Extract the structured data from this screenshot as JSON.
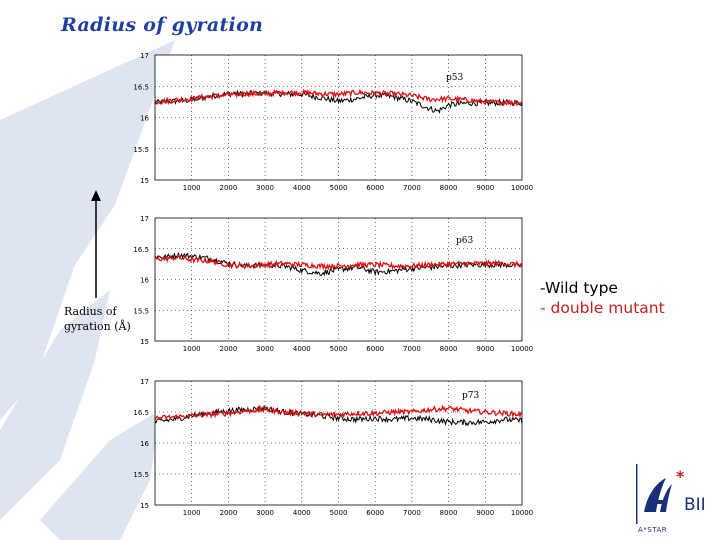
{
  "slide": {
    "title": "Radius of gyration",
    "ylabel_line1": "Radius of",
    "ylabel_line2": "gyration (Å)",
    "logo_text_main": "BII",
    "logo_text_sub": "A*STAR"
  },
  "legend": {
    "wild_type": "-Wild type",
    "double_mutant": "- double mutant",
    "wild_type_color": "#000000",
    "double_mutant_color": "#e01010"
  },
  "colors": {
    "title": "#1f3fa0",
    "background_logo": "#dfe5f0",
    "logo_blue": "#1a2f7a",
    "logo_red": "#c81e1e"
  },
  "chart_data": [
    {
      "type": "line",
      "annotation": "p53",
      "xlim": [
        0,
        10000
      ],
      "ylim": [
        15,
        17
      ],
      "xticks": [
        "1000",
        "2000",
        "3000",
        "4000",
        "5000",
        "6000",
        "7000",
        "8000",
        "9000",
        "10000"
      ],
      "yticks": [
        "15",
        "15.5",
        "16",
        "16.5",
        "17"
      ],
      "grid": true,
      "series": [
        {
          "name": "-Wild type",
          "color": "#000000",
          "x": [
            0,
            500,
            1000,
            1500,
            2000,
            2500,
            3000,
            3500,
            4000,
            4500,
            5000,
            5500,
            6000,
            6500,
            7000,
            7500,
            7700,
            8000,
            8500,
            9000,
            9500,
            10000
          ],
          "y": [
            16.24,
            16.26,
            16.28,
            16.34,
            16.38,
            16.38,
            16.39,
            16.38,
            16.37,
            16.32,
            16.26,
            16.3,
            16.36,
            16.33,
            16.26,
            16.14,
            16.1,
            16.2,
            16.23,
            16.23,
            16.24,
            16.23
          ]
        },
        {
          "name": "- double mutant",
          "color": "#e01010",
          "x": [
            0,
            500,
            1000,
            1500,
            2000,
            2500,
            3000,
            3500,
            4000,
            4500,
            5000,
            5500,
            6000,
            6500,
            7000,
            7500,
            8000,
            8500,
            9000,
            9500,
            10000
          ],
          "y": [
            16.25,
            16.28,
            16.3,
            16.34,
            16.36,
            16.38,
            16.38,
            16.4,
            16.4,
            16.38,
            16.37,
            16.4,
            16.39,
            16.38,
            16.35,
            16.29,
            16.3,
            16.28,
            16.25,
            16.24,
            16.24
          ]
        }
      ]
    },
    {
      "type": "line",
      "annotation": "p63",
      "xlim": [
        0,
        10000
      ],
      "ylim": [
        15,
        17
      ],
      "xticks": [
        "1000",
        "2000",
        "3000",
        "4000",
        "5000",
        "6000",
        "7000",
        "8000",
        "9000",
        "10000"
      ],
      "yticks": [
        "15",
        "15.5",
        "16",
        "16.5",
        "17"
      ],
      "grid": true,
      "series": [
        {
          "name": "-Wild type",
          "color": "#000000",
          "x": [
            0,
            300,
            600,
            1000,
            1500,
            2000,
            2500,
            3000,
            3500,
            4000,
            4500,
            5000,
            5500,
            6000,
            6500,
            7000,
            7500,
            8000,
            8500,
            9000,
            9500,
            10000
          ],
          "y": [
            16.38,
            16.36,
            16.4,
            16.38,
            16.34,
            16.26,
            16.22,
            16.24,
            16.22,
            16.15,
            16.1,
            16.16,
            16.2,
            16.12,
            16.14,
            16.18,
            16.2,
            16.22,
            16.24,
            16.24,
            16.24,
            16.22
          ]
        },
        {
          "name": "- double mutant",
          "color": "#e01010",
          "x": [
            0,
            300,
            600,
            1000,
            1500,
            2000,
            2500,
            3000,
            3500,
            4000,
            4500,
            5000,
            5500,
            6000,
            6500,
            7000,
            7500,
            8000,
            8500,
            9000,
            9500,
            10000
          ],
          "y": [
            16.33,
            16.34,
            16.36,
            16.32,
            16.3,
            16.24,
            16.22,
            16.24,
            16.26,
            16.24,
            16.22,
            16.22,
            16.24,
            16.24,
            16.22,
            16.22,
            16.24,
            16.25,
            16.26,
            16.26,
            16.26,
            16.24
          ]
        }
      ]
    },
    {
      "type": "line",
      "annotation": "p73",
      "xlim": [
        0,
        10000
      ],
      "ylim": [
        15,
        17
      ],
      "xticks": [
        "1000",
        "2000",
        "3000",
        "4000",
        "5000",
        "6000",
        "7000",
        "8000",
        "9000",
        "10000"
      ],
      "yticks": [
        "15",
        "15.5",
        "16",
        "16.5",
        "17"
      ],
      "grid": true,
      "series": [
        {
          "name": "-Wild type",
          "color": "#000000",
          "x": [
            0,
            500,
            1000,
            1500,
            2000,
            2500,
            3000,
            3500,
            4000,
            4500,
            5000,
            5500,
            6000,
            6500,
            7000,
            7500,
            8000,
            8500,
            9000,
            9500,
            10000
          ],
          "y": [
            16.34,
            16.38,
            16.44,
            16.48,
            16.52,
            16.54,
            16.56,
            16.5,
            16.47,
            16.44,
            16.4,
            16.38,
            16.4,
            16.38,
            16.4,
            16.38,
            16.34,
            16.33,
            16.34,
            16.38,
            16.36
          ]
        },
        {
          "name": "- double mutant",
          "color": "#e01010",
          "x": [
            0,
            500,
            1000,
            1500,
            2000,
            2500,
            3000,
            3500,
            4000,
            4500,
            5000,
            5500,
            6000,
            6500,
            7000,
            7500,
            8000,
            8500,
            9000,
            9500,
            10000
          ],
          "y": [
            16.4,
            16.42,
            16.44,
            16.46,
            16.48,
            16.52,
            16.54,
            16.5,
            16.48,
            16.46,
            16.46,
            16.48,
            16.48,
            16.5,
            16.5,
            16.54,
            16.56,
            16.52,
            16.5,
            16.48,
            16.46
          ]
        }
      ]
    }
  ]
}
